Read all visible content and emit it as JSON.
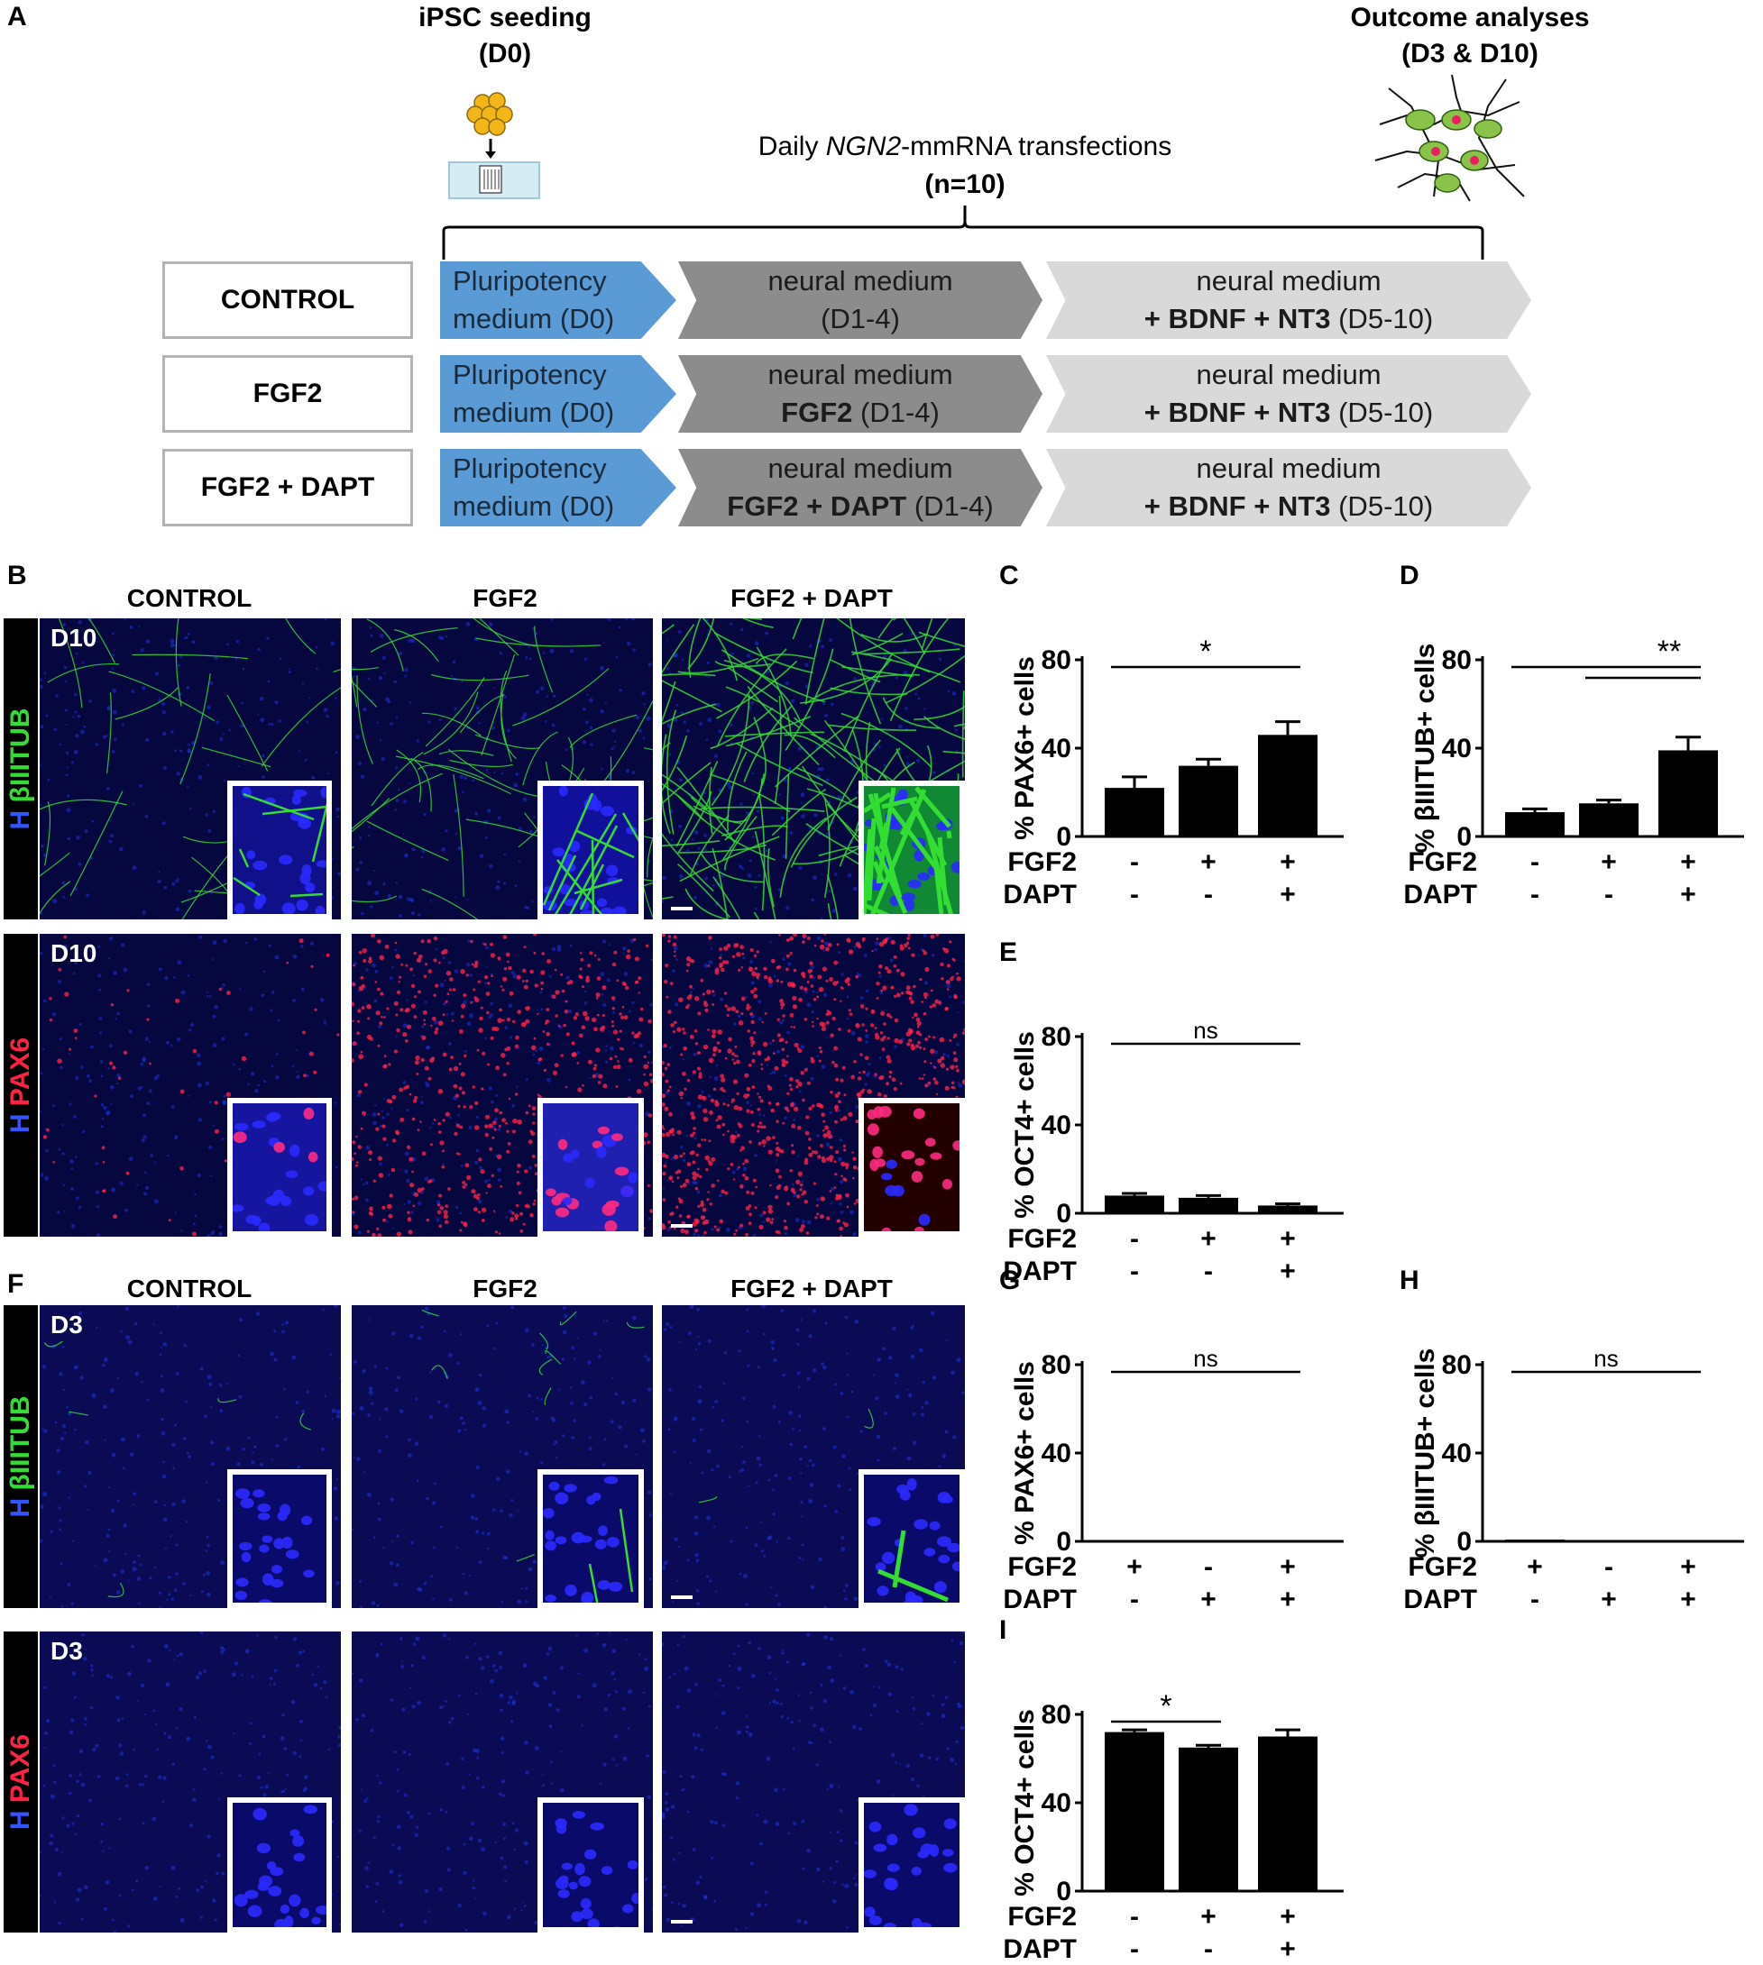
{
  "panel_letters": {
    "a": "A",
    "b": "B",
    "c": "C",
    "d": "D",
    "e": "E",
    "f": "F",
    "g": "G",
    "h": "H",
    "i": "I"
  },
  "timeline": {
    "seeding_title": "iPSC seeding",
    "seeding_day": "(D0)",
    "outcome_title": "Outcome analyses",
    "outcome_days": "(D3 & D10)",
    "transfection_pre": "Daily ",
    "transfection_gene": "NGN2",
    "transfection_post": "-mmRNA transfections",
    "transfection_n": "(n=10)"
  },
  "conditions": [
    {
      "label": "CONTROL",
      "step1": [
        "Pluripotency",
        "medium (D0)"
      ],
      "step2": {
        "line1": "neural medium",
        "bold": "",
        "rest": "(D1-4)"
      },
      "step3": {
        "line1": "neural medium",
        "bold": "+ BDNF + NT3",
        "rest": " (D5-10)"
      }
    },
    {
      "label": "FGF2",
      "step1": [
        "Pluripotency",
        "medium (D0)"
      ],
      "step2": {
        "line1": "neural medium",
        "bold": "FGF2",
        "rest": " (D1-4)"
      },
      "step3": {
        "line1": "neural medium",
        "bold": "+ BDNF + NT3",
        "rest": " (D5-10)"
      }
    },
    {
      "label": "FGF2 + DAPT",
      "step1": [
        "Pluripotency",
        "medium (D0)"
      ],
      "step2": {
        "line1": "neural medium",
        "bold": "FGF2 + DAPT",
        "rest": " (D1-4)"
      },
      "step3": {
        "line1": "neural medium",
        "bold": "+ BDNF + NT3",
        "rest": " (D5-10)"
      }
    }
  ],
  "microscopy": {
    "column_headers": [
      "CONTROL",
      "FGF2",
      "FGF2 + DAPT"
    ],
    "d10_tag": "D10",
    "d3_tag": "D3",
    "stain_h": "H ",
    "stain_tub": "βIIITUB",
    "stain_pax6": "PAX6",
    "colors": {
      "nuclei": "#1f3cff",
      "tub": "#33dd33",
      "pax6": "#ff2244",
      "background": "#000000"
    }
  },
  "chart_data": [
    {
      "panel": "C",
      "type": "bar",
      "ylabel": "% PAX6+ cells",
      "ylim": [
        0,
        80
      ],
      "yticks": [
        "0",
        "40",
        "80"
      ],
      "values": [
        22,
        32,
        46
      ],
      "errors": [
        5,
        3,
        6
      ],
      "fgf2": [
        "-",
        "+",
        "+"
      ],
      "dapt": [
        "-",
        "-",
        "+"
      ],
      "row_labels": [
        "FGF2",
        "DAPT"
      ],
      "sig": [
        {
          "from": 0,
          "to": 2,
          "label": "*"
        }
      ]
    },
    {
      "panel": "D",
      "type": "bar",
      "ylabel": "% βIIITUB+ cells",
      "ylim": [
        0,
        80
      ],
      "yticks": [
        "0",
        "40",
        "80"
      ],
      "values": [
        11,
        15,
        39
      ],
      "errors": [
        1.5,
        1.5,
        6
      ],
      "fgf2": [
        "-",
        "+",
        "+"
      ],
      "dapt": [
        "-",
        "-",
        "+"
      ],
      "row_labels": [
        "FGF2",
        "DAPT"
      ],
      "sig": [
        {
          "from": 0,
          "to": 2,
          "label": "**"
        },
        {
          "from": 1,
          "to": 2,
          "label": ""
        }
      ]
    },
    {
      "panel": "E",
      "type": "bar",
      "ylabel": "% OCT4+ cells",
      "ylim": [
        0,
        80
      ],
      "yticks": [
        "0",
        "40",
        "80"
      ],
      "values": [
        8,
        7,
        3.5
      ],
      "errors": [
        1,
        1,
        0.8
      ],
      "fgf2": [
        "-",
        "+",
        "+"
      ],
      "dapt": [
        "-",
        "-",
        "+"
      ],
      "row_labels": [
        "FGF2",
        "DAPT"
      ],
      "sig": [
        {
          "from": 0,
          "to": 2,
          "label": "ns"
        }
      ]
    },
    {
      "panel": "G",
      "type": "bar",
      "ylabel": "% PAX6+ cells",
      "ylim": [
        0,
        80
      ],
      "yticks": [
        "0",
        "40",
        "80"
      ],
      "values": [
        0.3,
        0,
        0
      ],
      "errors": [
        0,
        0,
        0
      ],
      "fgf2": [
        "+",
        "-",
        "+"
      ],
      "dapt": [
        "-",
        "+",
        "+"
      ],
      "row_labels": [
        "FGF2",
        "DAPT"
      ],
      "sig": [
        {
          "from": 0,
          "to": 2,
          "label": "ns"
        }
      ]
    },
    {
      "panel": "H",
      "type": "bar",
      "ylabel": "% βIIITUB+ cells",
      "ylim": [
        0,
        80
      ],
      "yticks": [
        "0",
        "40",
        "80"
      ],
      "values": [
        0.8,
        0,
        0
      ],
      "errors": [
        0,
        0,
        0
      ],
      "fgf2": [
        "+",
        "-",
        "+"
      ],
      "dapt": [
        "-",
        "+",
        "+"
      ],
      "row_labels": [
        "FGF2",
        "DAPT"
      ],
      "sig": [
        {
          "from": 0,
          "to": 2,
          "label": "ns"
        }
      ]
    },
    {
      "panel": "I",
      "type": "bar",
      "ylabel": "% OCT4+ cells",
      "ylim": [
        0,
        80
      ],
      "yticks": [
        "0",
        "40",
        "80"
      ],
      "values": [
        72,
        65,
        70
      ],
      "errors": [
        1,
        1,
        3
      ],
      "fgf2": [
        "-",
        "+",
        "+"
      ],
      "dapt": [
        "-",
        "-",
        "+"
      ],
      "row_labels": [
        "FGF2",
        "DAPT"
      ],
      "sig": [
        {
          "from": 0,
          "to": 1,
          "label": "*"
        }
      ]
    }
  ]
}
